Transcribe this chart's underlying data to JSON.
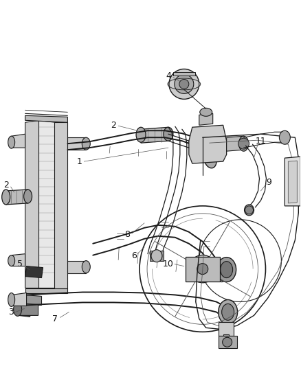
{
  "bg_color": "#ffffff",
  "lc": "#1a1a1a",
  "lc2": "#555555",
  "lc3": "#888888",
  "figsize": [
    4.38,
    5.33
  ],
  "dpi": 100,
  "label_fs": 9,
  "label_color": "#111111",
  "annotation_lw": 0.5,
  "parts_lw": 0.9,
  "thin_lw": 0.5,
  "thick_lw": 1.4
}
